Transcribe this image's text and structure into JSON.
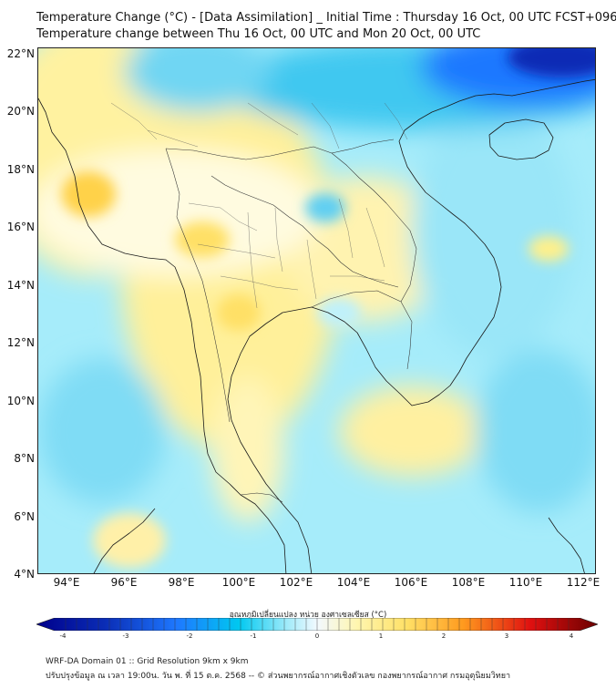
{
  "header": {
    "title_line1": "Temperature Change (°C) - [Data Assimilation] _ Initial Time : Thursday 16 Oct, 00 UTC FCST+096",
    "title_line2": "Temperature change between Thu 16 Oct, 00 UTC and Mon 20 Oct, 00 UTC"
  },
  "map": {
    "lon_range": [
      93,
      112.5
    ],
    "lat_range": [
      4,
      22.2
    ],
    "lat_labels": [
      "22°N",
      "20°N",
      "18°N",
      "16°N",
      "14°N",
      "12°N",
      "10°N",
      "8°N",
      "6°N",
      "4°N"
    ],
    "lon_labels": [
      "94°E",
      "96°E",
      "98°E",
      "100°E",
      "102°E",
      "104°E",
      "106°E",
      "108°E",
      "110°E",
      "112°E"
    ],
    "colors": {
      "strong_cold": "#00008b",
      "cold": "#1e78ff",
      "cool": "#00c8f0",
      "light_cool": "#a6ecfa",
      "neutral": "#f2f9ff",
      "light_warm": "#fff6b0",
      "warm": "#ffe066",
      "hot": "#ff9a1e",
      "strong_hot": "#6b0000"
    }
  },
  "colorbar": {
    "title": "อุณหภูมิเปลี่ยนแปลง หน่วย องศาเซลเซียส (°C)",
    "min": -4,
    "max": 4,
    "ticks": [
      "-4",
      "-3",
      "-2",
      "-1",
      "0",
      "1",
      "2",
      "3",
      "4"
    ]
  },
  "footer": {
    "line1": "WRF-DA Domain 01 :: Grid Resolution 9km x 9km",
    "line2": "ปรับปรุงข้อมูล ณ เวลา 19:00น. วัน พ. ที่ 15 ต.ค. 2568 -- © ส่วนพยากรณ์อากาศเชิงตัวเลข กองพยากรณ์อากาศ กรมอุตุนิยมวิทยา"
  }
}
